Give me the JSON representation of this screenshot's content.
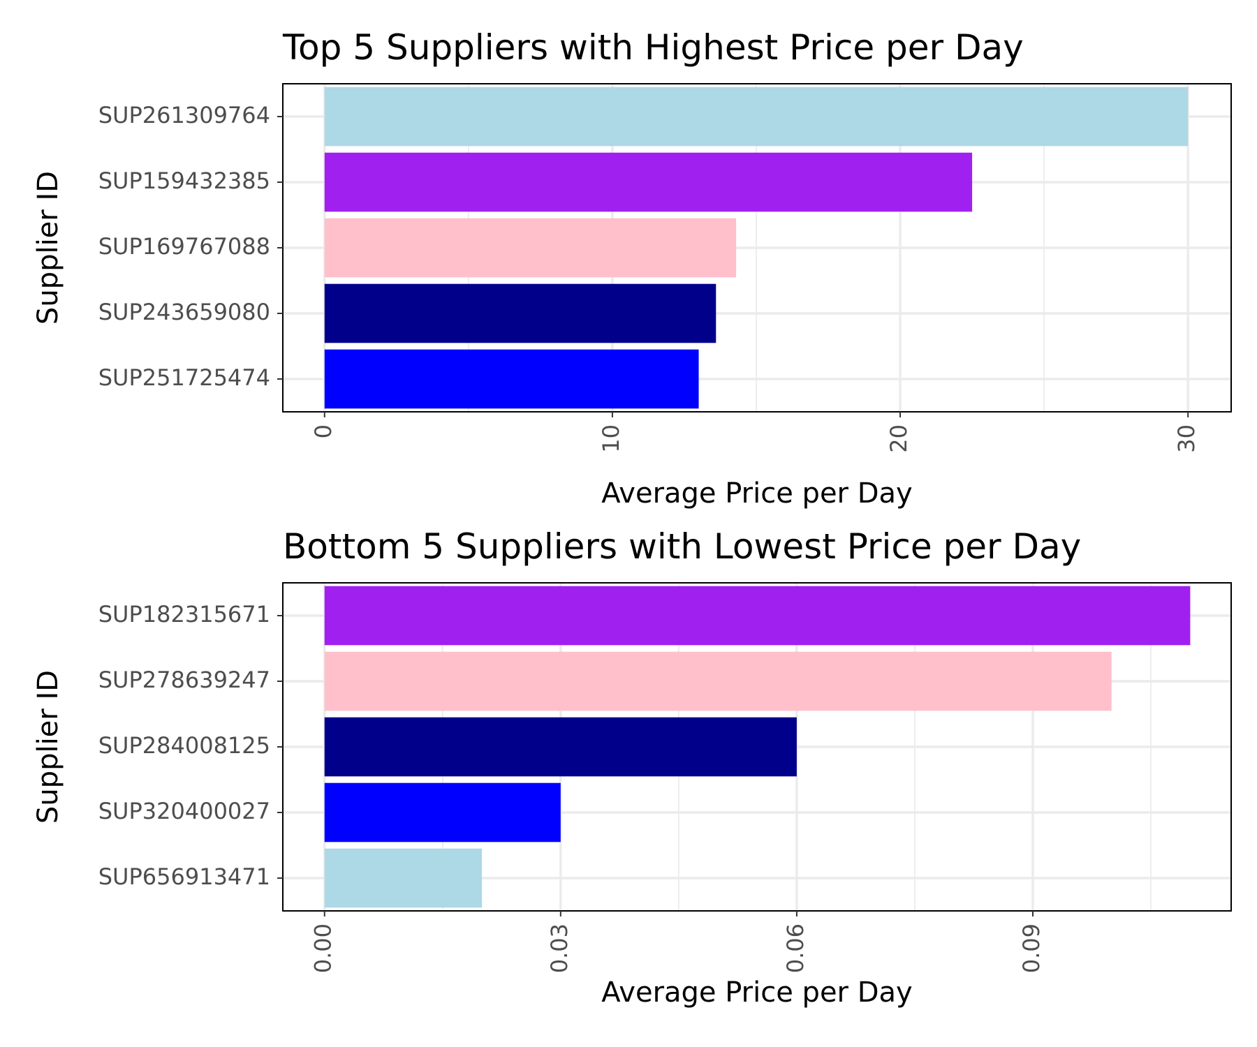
{
  "chart_data": [
    {
      "type": "bar",
      "orientation": "horizontal",
      "title": "Top 5 Suppliers with Highest Price per Day",
      "xlabel": "Average Price per Day",
      "ylabel": "Supplier ID",
      "categories": [
        "SUP261309764",
        "SUP159432385",
        "SUP169767088",
        "SUP243659080",
        "SUP251725474"
      ],
      "values": [
        30.0,
        22.5,
        14.3,
        13.6,
        13.0
      ],
      "colors": [
        "#add8e6",
        "#a020f0",
        "#ffc0cb",
        "#00008b",
        "#0000ff"
      ],
      "xlim": [
        -1.45,
        31.5
      ],
      "xticks": [
        0,
        10,
        20,
        30
      ],
      "xtick_labels": [
        "0",
        "10",
        "20",
        "30"
      ],
      "minor_xticks": [
        5,
        15,
        25
      ],
      "grid": true,
      "legend": "none"
    },
    {
      "type": "bar",
      "orientation": "horizontal",
      "title": "Bottom 5 Suppliers with Lowest Price per Day",
      "xlabel": "Average Price per Day",
      "ylabel": "Supplier ID",
      "categories": [
        "SUP182315671",
        "SUP278639247",
        "SUP284008125",
        "SUP320400027",
        "SUP656913471"
      ],
      "values": [
        0.11,
        0.1,
        0.06,
        0.03,
        0.02
      ],
      "colors": [
        "#a020f0",
        "#ffc0cb",
        "#00008b",
        "#0000ff",
        "#add8e6"
      ],
      "xlim": [
        -0.0053,
        0.1152
      ],
      "xticks": [
        0.0,
        0.03,
        0.06,
        0.09
      ],
      "xtick_labels": [
        "0.00",
        "0.03",
        "0.06",
        "0.09"
      ],
      "minor_xticks": [
        0.015,
        0.045,
        0.075,
        0.105
      ],
      "grid": true,
      "legend": "none"
    }
  ]
}
